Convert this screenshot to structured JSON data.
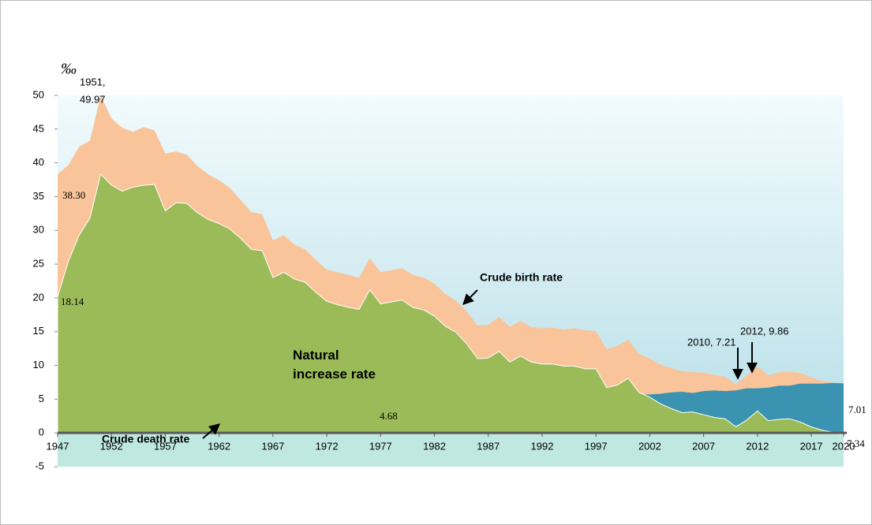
{
  "chart_data": {
    "type": "area",
    "y_label": "‰",
    "x": [
      1947,
      1948,
      1949,
      1950,
      1951,
      1952,
      1953,
      1954,
      1955,
      1956,
      1957,
      1958,
      1959,
      1960,
      1961,
      1962,
      1963,
      1964,
      1965,
      1966,
      1967,
      1968,
      1969,
      1970,
      1971,
      1972,
      1973,
      1974,
      1975,
      1976,
      1977,
      1978,
      1979,
      1980,
      1981,
      1982,
      1983,
      1984,
      1985,
      1986,
      1987,
      1988,
      1989,
      1990,
      1991,
      1992,
      1993,
      1994,
      1995,
      1996,
      1997,
      1998,
      1999,
      2000,
      2001,
      2002,
      2003,
      2004,
      2005,
      2006,
      2007,
      2008,
      2009,
      2010,
      2011,
      2012,
      2013,
      2014,
      2015,
      2016,
      2017,
      2018,
      2019,
      2020
    ],
    "series": [
      {
        "name": "Crude birth rate",
        "color": "#f9c49a",
        "values": [
          38.3,
          39.7,
          42.4,
          43.3,
          49.97,
          46.6,
          45.2,
          44.6,
          45.3,
          44.8,
          41.4,
          41.7,
          41.2,
          39.5,
          38.3,
          37.4,
          36.3,
          34.5,
          32.7,
          32.4,
          28.5,
          29.3,
          27.9,
          27.2,
          25.6,
          24.2,
          23.8,
          23.4,
          23.0,
          25.9,
          23.8,
          24.1,
          24.4,
          23.4,
          23.0,
          22.1,
          20.6,
          19.6,
          18.0,
          15.9,
          16.0,
          17.2,
          15.7,
          16.6,
          15.7,
          15.5,
          15.6,
          15.3,
          15.5,
          15.2,
          15.1,
          12.4,
          12.9,
          13.8,
          11.7,
          11.0,
          10.1,
          9.6,
          9.1,
          9.0,
          8.9,
          8.6,
          8.3,
          7.21,
          8.5,
          9.86,
          8.5,
          9.0,
          9.1,
          8.9,
          8.2,
          7.7,
          7.5,
          7.01
        ]
      },
      {
        "name": "Crude death rate",
        "color": "#3a93b0",
        "values": [
          18.14,
          14.3,
          13.1,
          11.5,
          11.6,
          9.9,
          9.4,
          8.2,
          8.6,
          8.0,
          8.5,
          7.6,
          7.2,
          6.9,
          6.7,
          6.4,
          6.1,
          5.7,
          5.5,
          5.4,
          5.5,
          5.5,
          5.1,
          4.9,
          4.8,
          4.7,
          4.8,
          4.8,
          4.7,
          4.7,
          4.68,
          4.7,
          4.7,
          4.8,
          4.8,
          4.8,
          4.8,
          4.7,
          4.8,
          4.9,
          4.9,
          5.1,
          5.2,
          5.2,
          5.2,
          5.3,
          5.4,
          5.4,
          5.6,
          5.7,
          5.6,
          5.7,
          5.8,
          5.7,
          5.7,
          5.7,
          5.8,
          6.0,
          6.1,
          5.9,
          6.2,
          6.3,
          6.2,
          6.3,
          6.6,
          6.6,
          6.7,
          7.0,
          7.0,
          7.3,
          7.3,
          7.3,
          7.4,
          7.34
        ]
      },
      {
        "name": "Natural increase rate",
        "color": "#9bbb59",
        "values": [
          20.16,
          25.4,
          29.3,
          31.8,
          38.37,
          36.7,
          35.8,
          36.4,
          36.7,
          36.8,
          32.9,
          34.1,
          34.0,
          32.6,
          31.6,
          31.0,
          30.2,
          28.8,
          27.2,
          27.0,
          23.0,
          23.8,
          22.8,
          22.3,
          20.8,
          19.5,
          19.0,
          18.6,
          18.3,
          21.2,
          19.1,
          19.4,
          19.7,
          18.6,
          18.2,
          17.3,
          15.8,
          14.9,
          13.2,
          11.0,
          11.1,
          12.1,
          10.5,
          11.4,
          10.5,
          10.2,
          10.2,
          9.9,
          9.9,
          9.5,
          9.5,
          6.7,
          7.1,
          8.1,
          6.0,
          5.3,
          4.3,
          3.6,
          3.0,
          3.1,
          2.7,
          2.3,
          2.1,
          0.9,
          1.9,
          3.26,
          1.8,
          2.0,
          2.1,
          1.6,
          0.9,
          0.4,
          0.1,
          -0.33
        ]
      }
    ],
    "xlim": [
      1947,
      2020
    ],
    "xticks": [
      1947,
      1952,
      1957,
      1962,
      1967,
      1972,
      1977,
      1982,
      1987,
      1992,
      1997,
      2002,
      2007,
      2012,
      2017,
      2020
    ],
    "ylim": [
      -5,
      50
    ],
    "yticks": [
      -5,
      0,
      5,
      10,
      15,
      20,
      25,
      30,
      35,
      40,
      45,
      50
    ],
    "annotations": [
      "1951,",
      "49.97",
      "38.30",
      "18.14",
      "4.68",
      "2010, 7.21",
      "2012, 9.86",
      "7.01",
      "7.34"
    ]
  }
}
